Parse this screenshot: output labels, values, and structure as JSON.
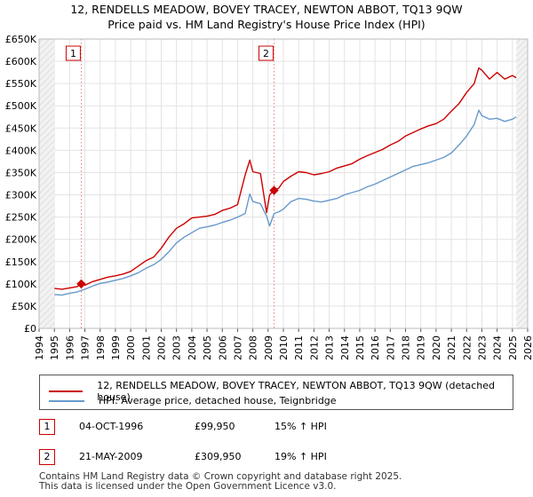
{
  "chart_data": {
    "type": "line",
    "title": "12, RENDELLS MEADOW, BOVEY TRACEY, NEWTON ABBOT, TQ13 9QW",
    "subtitle": "Price paid vs. HM Land Registry's House Price Index (HPI)",
    "xlim": [
      1994,
      2026
    ],
    "ylim": [
      0,
      650000
    ],
    "x_ticks": [
      "1994",
      "1995",
      "1996",
      "1997",
      "1998",
      "1999",
      "2000",
      "2001",
      "2002",
      "2003",
      "2004",
      "2005",
      "2006",
      "2007",
      "2008",
      "2009",
      "2010",
      "2011",
      "2012",
      "2013",
      "2014",
      "2015",
      "2016",
      "2017",
      "2018",
      "2019",
      "2020",
      "2021",
      "2022",
      "2023",
      "2024",
      "2025",
      "2026"
    ],
    "y_ticks": [
      {
        "value": 0,
        "label": "£0"
      },
      {
        "value": 50000,
        "label": "£50K"
      },
      {
        "value": 100000,
        "label": "£100K"
      },
      {
        "value": 150000,
        "label": "£150K"
      },
      {
        "value": 200000,
        "label": "£200K"
      },
      {
        "value": 250000,
        "label": "£250K"
      },
      {
        "value": 300000,
        "label": "£300K"
      },
      {
        "value": 350000,
        "label": "£350K"
      },
      {
        "value": 400000,
        "label": "£400K"
      },
      {
        "value": 450000,
        "label": "£450K"
      },
      {
        "value": 500000,
        "label": "£500K"
      },
      {
        "value": 550000,
        "label": "£550K"
      },
      {
        "value": 600000,
        "label": "£600K"
      },
      {
        "value": 650000,
        "label": "£650K"
      }
    ],
    "grid": true,
    "data_start": 1995.0,
    "data_end": 2025.25,
    "series": [
      {
        "name": "12, RENDELLS MEADOW, BOVEY TRACEY, NEWTON ABBOT, TQ13 9QW (detached house)",
        "color": "#cc0000",
        "x": [
          1995.0,
          1995.5,
          1996.0,
          1996.5,
          1996.76,
          1997.0,
          1997.5,
          1998.0,
          1998.5,
          1999.0,
          1999.5,
          2000.0,
          2000.5,
          2001.0,
          2001.5,
          2002.0,
          2002.5,
          2003.0,
          2003.5,
          2004.0,
          2004.5,
          2005.0,
          2005.5,
          2006.0,
          2006.5,
          2007.0,
          2007.5,
          2007.8,
          2008.0,
          2008.5,
          2008.9,
          2009.1,
          2009.39,
          2009.7,
          2010.0,
          2010.5,
          2011.0,
          2011.5,
          2012.0,
          2012.5,
          2013.0,
          2013.5,
          2014.0,
          2014.5,
          2015.0,
          2015.5,
          2016.0,
          2016.5,
          2017.0,
          2017.5,
          2018.0,
          2018.5,
          2019.0,
          2019.5,
          2020.0,
          2020.5,
          2021.0,
          2021.5,
          2022.0,
          2022.5,
          2022.8,
          2023.0,
          2023.5,
          2024.0,
          2024.5,
          2025.0,
          2025.25
        ],
        "values": [
          90000,
          88000,
          91000,
          94000,
          99950,
          97000,
          105000,
          110000,
          115000,
          118000,
          122000,
          128000,
          140000,
          152000,
          160000,
          180000,
          205000,
          225000,
          235000,
          248000,
          250000,
          252000,
          256000,
          265000,
          270000,
          278000,
          345000,
          378000,
          352000,
          348000,
          260000,
          300000,
          309950,
          315000,
          330000,
          342000,
          352000,
          350000,
          345000,
          348000,
          352000,
          360000,
          365000,
          370000,
          380000,
          388000,
          395000,
          402000,
          412000,
          420000,
          432000,
          440000,
          448000,
          455000,
          460000,
          470000,
          488000,
          505000,
          530000,
          550000,
          585000,
          580000,
          560000,
          575000,
          560000,
          568000,
          563000
        ]
      },
      {
        "name": "HPI: Average price, detached house, Teignbridge",
        "color": "#6699cc",
        "x": [
          1995.0,
          1995.5,
          1996.0,
          1996.5,
          1997.0,
          1997.5,
          1998.0,
          1998.5,
          1999.0,
          1999.5,
          2000.0,
          2000.5,
          2001.0,
          2001.5,
          2002.0,
          2002.5,
          2003.0,
          2003.5,
          2004.0,
          2004.5,
          2005.0,
          2005.5,
          2006.0,
          2006.5,
          2007.0,
          2007.5,
          2007.8,
          2008.0,
          2008.5,
          2008.9,
          2009.1,
          2009.39,
          2009.7,
          2010.0,
          2010.5,
          2011.0,
          2011.5,
          2012.0,
          2012.5,
          2013.0,
          2013.5,
          2014.0,
          2014.5,
          2015.0,
          2015.5,
          2016.0,
          2016.5,
          2017.0,
          2017.5,
          2018.0,
          2018.5,
          2019.0,
          2019.5,
          2020.0,
          2020.5,
          2021.0,
          2021.5,
          2022.0,
          2022.5,
          2022.8,
          2023.0,
          2023.5,
          2024.0,
          2024.5,
          2025.0,
          2025.25
        ],
        "values": [
          76000,
          75000,
          79000,
          82000,
          88000,
          95000,
          101000,
          104000,
          108000,
          112000,
          118000,
          125000,
          135000,
          143000,
          155000,
          172000,
          192000,
          205000,
          215000,
          225000,
          228000,
          232000,
          238000,
          243000,
          250000,
          258000,
          302000,
          285000,
          280000,
          252000,
          230000,
          258000,
          262000,
          268000,
          285000,
          292000,
          290000,
          286000,
          284000,
          288000,
          292000,
          300000,
          305000,
          310000,
          318000,
          324000,
          332000,
          340000,
          348000,
          356000,
          364000,
          368000,
          372000,
          378000,
          384000,
          394000,
          412000,
          432000,
          458000,
          490000,
          478000,
          470000,
          472000,
          465000,
          470000,
          475000
        ]
      }
    ],
    "sales": [
      {
        "label": "1",
        "x": 1996.76,
        "value": 99950
      },
      {
        "label": "2",
        "x": 2009.39,
        "value": 309950
      }
    ]
  },
  "legend": {
    "property_label": "12, RENDELLS MEADOW, BOVEY TRACEY, NEWTON ABBOT, TQ13 9QW (detached house)",
    "hpi_label": "HPI: Average price, detached house, Teignbridge",
    "property_color": "#cc0000",
    "hpi_color": "#6699cc"
  },
  "sales_table": [
    {
      "num": "1",
      "date": "04-OCT-1996",
      "price": "£99,950",
      "hpi": "15% ↑ HPI"
    },
    {
      "num": "2",
      "date": "21-MAY-2009",
      "price": "£309,950",
      "hpi": "19% ↑ HPI"
    }
  ],
  "footer": {
    "line1": "Contains HM Land Registry data © Crown copyright and database right 2025.",
    "line2": "This data is licensed under the Open Government Licence v3.0."
  }
}
